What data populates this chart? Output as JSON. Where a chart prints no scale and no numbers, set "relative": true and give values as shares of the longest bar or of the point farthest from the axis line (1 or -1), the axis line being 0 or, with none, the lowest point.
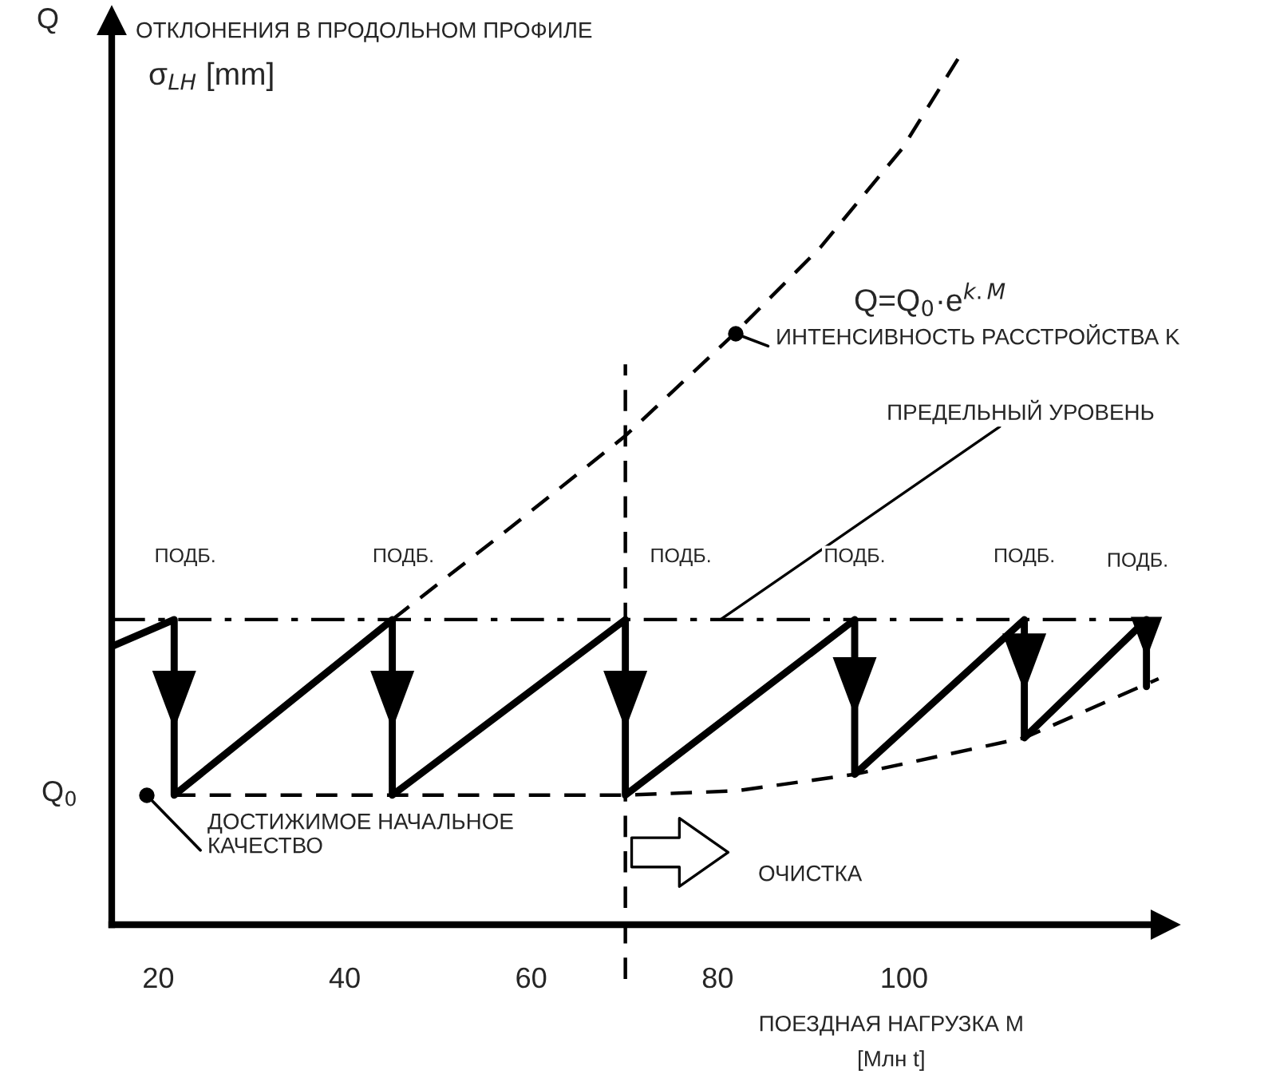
{
  "chart_data": {
    "type": "line",
    "relative": true,
    "ylabel": "Q",
    "xlabel": "ПОЕЗДНАЯ НАГРУЗКА M\n[Млн t]",
    "xlim": [
      15,
      128
    ],
    "xticks": [
      20,
      40,
      60,
      80,
      100
    ],
    "tick_labels": "x",
    "grid": false,
    "legend": false,
    "series": [
      {
        "color": "#000000",
        "line_style": "solid",
        "x": [
          15.0,
          21.7,
          21.7,
          45.1,
          45.1,
          70.1,
          70.1,
          94.7,
          94.7,
          112.9,
          112.9,
          126.0,
          126.0
        ],
        "values": [
          0.32,
          0.351,
          0.149,
          0.351,
          0.149,
          0.351,
          0.149,
          0.351,
          0.173,
          0.351,
          0.215,
          0.351,
          0.274
        ]
      },
      {
        "color": "#000000",
        "line_style": "dashed",
        "x": [
          45.1,
          57.9,
          70.1,
          81.8,
          91.0,
          99.8,
          106.0
        ],
        "values": [
          0.351,
          0.458,
          0.5625,
          0.68,
          0.779,
          0.893,
          1.0
        ]
      },
      {
        "color": "#000000",
        "line_style": "dashed",
        "x": [
          21.7,
          70.1,
          82.0,
          94.7,
          112.9,
          127.3
        ],
        "values": [
          0.149,
          0.149,
          0.154,
          0.173,
          0.215,
          0.283
        ]
      }
    ],
    "ref_lines": [
      {
        "axis": "y",
        "value": 0.351,
        "line_style": "dashdot",
        "color": "#000000"
      },
      {
        "axis": "x",
        "value": 70.1,
        "line_style": "dashed",
        "color": "#000000"
      }
    ],
    "annotations": [
      "ОТКЛОНЕНИЯ В ПРОДОЛЬНОМ ПРОФИЛЕ",
      "σ$_{LH}$ [mm]",
      "Q=Q$_{0}$·e$^{k.M}$",
      "ИНТЕНСИВНОСТЬ РАССТРОЙСТВА K",
      {
        "text": "ПРЕДЕЛЬНЫЙ УРОВЕНЬ",
        "x": 80.3,
        "y": 0.351
      },
      "ДОСТИЖИМОЕ НАЧАЛЬНОЕ\nКАЧЕСТВО",
      "Q$_{0}$",
      "ОЧИСТКА",
      {
        "text": "ПОДБ.",
        "x": 21.7,
        "y": 0.351
      },
      {
        "text": "ПОДБ.",
        "x": 45.1,
        "y": 0.351
      },
      {
        "text": "ПОДБ.",
        "x": 70.1,
        "y": 0.351
      },
      {
        "text": "ПОДБ.",
        "x": 94.7,
        "y": 0.351
      },
      {
        "text": "ПОДБ.",
        "x": 112.9,
        "y": 0.351
      },
      {
        "text": "ПОДБ.",
        "x": 126.0,
        "y": 0.351
      }
    ]
  }
}
